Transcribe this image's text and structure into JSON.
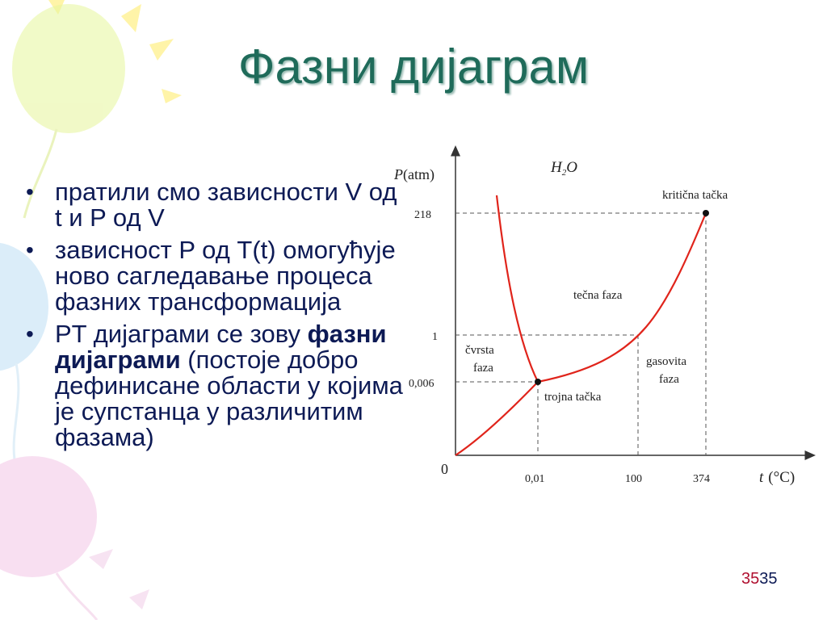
{
  "title": "Фазни дијаграм",
  "bullets": [
    {
      "text": "пратили смо зависности V од t и P од V"
    },
    {
      "text": "зависност P од T(t) омогућује ново сагледавање процеса фазних трансформација"
    },
    {
      "before": "PT дијаграми се зову ",
      "bold": "фазни дијаграми",
      "after": " (постоје добро дефинисане области у којима је супстанца у различитим фазама)"
    }
  ],
  "diagram": {
    "formula_main": "H",
    "formula_sub": "2",
    "formula_tail": "O",
    "y_axis_var": "P",
    "y_axis_unit": "(atm)",
    "x_axis_var": "t",
    "x_axis_unit": "(°C)",
    "origin": "0",
    "y_ticks": [
      "218",
      "1",
      "0,006"
    ],
    "x_ticks": [
      "0,01",
      "100",
      "374"
    ],
    "labels": {
      "critical_point": "kritična tačka",
      "liquid": "tečna faza",
      "solid_1": "čvrsta",
      "solid_2": "faza",
      "gas_1": "gasovita",
      "gas_2": "faza",
      "triple_point": "trojna tačka"
    },
    "line_color": "#e0241b"
  },
  "page_number": {
    "a": "35",
    "b": "35"
  }
}
